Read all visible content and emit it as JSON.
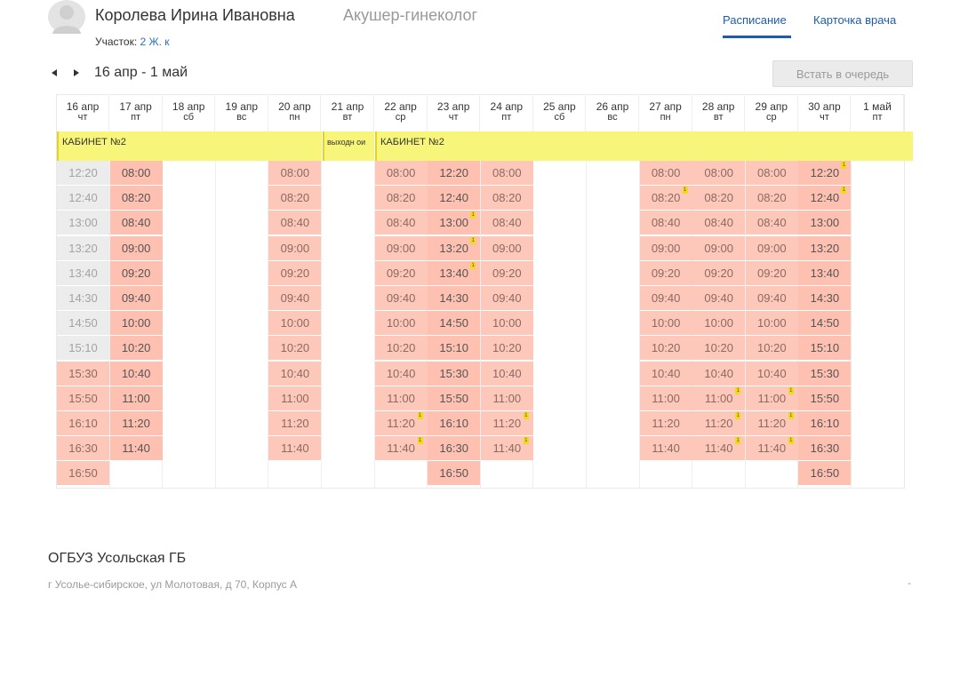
{
  "doctor": {
    "name": "Королева Ирина Ивановна",
    "specialty": "Акушер-гинеколог",
    "district_label": "Участок:",
    "district_value": "2 Ж. к"
  },
  "tabs": [
    {
      "label": "Расписание",
      "active": true
    },
    {
      "label": "Карточка врача",
      "active": false
    }
  ],
  "period": {
    "label": "16 апр - 1 май"
  },
  "queue_button": {
    "label": "Встать в очередь"
  },
  "days": [
    {
      "date": "16 апр",
      "dow": "чт"
    },
    {
      "date": "17 апр",
      "dow": "пт"
    },
    {
      "date": "18 апр",
      "dow": "сб"
    },
    {
      "date": "19 апр",
      "dow": "вс"
    },
    {
      "date": "20 апр",
      "dow": "пн"
    },
    {
      "date": "21 апр",
      "dow": "вт"
    },
    {
      "date": "22 апр",
      "dow": "ср"
    },
    {
      "date": "23 апр",
      "dow": "чт"
    },
    {
      "date": "24 апр",
      "dow": "пт"
    },
    {
      "date": "25 апр",
      "dow": "сб"
    },
    {
      "date": "26 апр",
      "dow": "вс"
    },
    {
      "date": "27 апр",
      "dow": "пн"
    },
    {
      "date": "28 апр",
      "dow": "вт"
    },
    {
      "date": "29 апр",
      "dow": "ср"
    },
    {
      "date": "30 апр",
      "dow": "чт"
    },
    {
      "date": "1 май",
      "dow": "пт"
    }
  ],
  "cabinet_bands": [
    {
      "label": "КАБИНЕТ №2"
    },
    {
      "label": "выходн ои"
    },
    {
      "label": "КАБИНЕТ №2"
    }
  ],
  "columns": [
    {
      "day": 0,
      "slots": [
        {
          "t": "12:20",
          "s": "past"
        },
        {
          "t": "12:40",
          "s": "past"
        },
        {
          "t": "13:00",
          "s": "past"
        },
        {
          "t": "13:20",
          "s": "past"
        },
        {
          "t": "13:40",
          "s": "past"
        },
        {
          "t": "14:30",
          "s": "past"
        },
        {
          "t": "14:50",
          "s": "past"
        },
        {
          "t": "15:10",
          "s": "past"
        },
        {
          "t": "15:30",
          "s": "busy"
        },
        {
          "t": "15:50",
          "s": "busy"
        },
        {
          "t": "16:10",
          "s": "busy"
        },
        {
          "t": "16:30",
          "s": "busy"
        },
        {
          "t": "16:50",
          "s": "busy"
        }
      ]
    },
    {
      "day": 1,
      "slots": [
        {
          "t": "08:00",
          "s": "free"
        },
        {
          "t": "08:20",
          "s": "free"
        },
        {
          "t": "08:40",
          "s": "free"
        },
        {
          "t": "09:00",
          "s": "free"
        },
        {
          "t": "09:20",
          "s": "free"
        },
        {
          "t": "09:40",
          "s": "free"
        },
        {
          "t": "10:00",
          "s": "free"
        },
        {
          "t": "10:20",
          "s": "free"
        },
        {
          "t": "10:40",
          "s": "free"
        },
        {
          "t": "11:00",
          "s": "free"
        },
        {
          "t": "11:20",
          "s": "free"
        },
        {
          "t": "11:40",
          "s": "free"
        }
      ]
    },
    {
      "day": 4,
      "slots": [
        {
          "t": "08:00",
          "s": "busy"
        },
        {
          "t": "08:20",
          "s": "busy"
        },
        {
          "t": "08:40",
          "s": "busy"
        },
        {
          "t": "09:00",
          "s": "busy"
        },
        {
          "t": "09:20",
          "s": "busy"
        },
        {
          "t": "09:40",
          "s": "busy"
        },
        {
          "t": "10:00",
          "s": "busy"
        },
        {
          "t": "10:20",
          "s": "busy"
        },
        {
          "t": "10:40",
          "s": "busy"
        },
        {
          "t": "11:00",
          "s": "busy"
        },
        {
          "t": "11:20",
          "s": "busy"
        },
        {
          "t": "11:40",
          "s": "busy"
        }
      ]
    },
    {
      "day": 6,
      "slots": [
        {
          "t": "08:00",
          "s": "busy"
        },
        {
          "t": "08:20",
          "s": "busy"
        },
        {
          "t": "08:40",
          "s": "busy"
        },
        {
          "t": "09:00",
          "s": "busy"
        },
        {
          "t": "09:20",
          "s": "busy"
        },
        {
          "t": "09:40",
          "s": "busy"
        },
        {
          "t": "10:00",
          "s": "busy"
        },
        {
          "t": "10:20",
          "s": "busy"
        },
        {
          "t": "10:40",
          "s": "busy"
        },
        {
          "t": "11:00",
          "s": "busy"
        },
        {
          "t": "11:20",
          "s": "busy",
          "m": true
        },
        {
          "t": "11:40",
          "s": "busy",
          "m": true
        }
      ]
    },
    {
      "day": 7,
      "slots": [
        {
          "t": "12:20",
          "s": "free"
        },
        {
          "t": "12:40",
          "s": "free"
        },
        {
          "t": "13:00",
          "s": "free",
          "m": true
        },
        {
          "t": "13:20",
          "s": "free",
          "m": true
        },
        {
          "t": "13:40",
          "s": "free",
          "m": true
        },
        {
          "t": "14:30",
          "s": "free"
        },
        {
          "t": "14:50",
          "s": "free"
        },
        {
          "t": "15:10",
          "s": "free"
        },
        {
          "t": "15:30",
          "s": "free"
        },
        {
          "t": "15:50",
          "s": "free"
        },
        {
          "t": "16:10",
          "s": "free"
        },
        {
          "t": "16:30",
          "s": "free"
        },
        {
          "t": "16:50",
          "s": "free"
        }
      ]
    },
    {
      "day": 8,
      "slots": [
        {
          "t": "08:00",
          "s": "busy"
        },
        {
          "t": "08:20",
          "s": "busy"
        },
        {
          "t": "08:40",
          "s": "busy"
        },
        {
          "t": "09:00",
          "s": "busy"
        },
        {
          "t": "09:20",
          "s": "busy"
        },
        {
          "t": "09:40",
          "s": "busy"
        },
        {
          "t": "10:00",
          "s": "busy"
        },
        {
          "t": "10:20",
          "s": "busy"
        },
        {
          "t": "10:40",
          "s": "busy"
        },
        {
          "t": "11:00",
          "s": "busy"
        },
        {
          "t": "11:20",
          "s": "busy",
          "m": true
        },
        {
          "t": "11:40",
          "s": "busy",
          "m": true
        }
      ]
    },
    {
      "day": 11,
      "slots": [
        {
          "t": "08:00",
          "s": "busy"
        },
        {
          "t": "08:20",
          "s": "busy",
          "m": true
        },
        {
          "t": "08:40",
          "s": "busy"
        },
        {
          "t": "09:00",
          "s": "busy"
        },
        {
          "t": "09:20",
          "s": "busy"
        },
        {
          "t": "09:40",
          "s": "busy"
        },
        {
          "t": "10:00",
          "s": "busy"
        },
        {
          "t": "10:20",
          "s": "busy"
        },
        {
          "t": "10:40",
          "s": "busy"
        },
        {
          "t": "11:00",
          "s": "busy"
        },
        {
          "t": "11:20",
          "s": "busy"
        },
        {
          "t": "11:40",
          "s": "busy"
        }
      ]
    },
    {
      "day": 12,
      "slots": [
        {
          "t": "08:00",
          "s": "busy"
        },
        {
          "t": "08:20",
          "s": "busy"
        },
        {
          "t": "08:40",
          "s": "busy"
        },
        {
          "t": "09:00",
          "s": "busy"
        },
        {
          "t": "09:20",
          "s": "busy"
        },
        {
          "t": "09:40",
          "s": "busy"
        },
        {
          "t": "10:00",
          "s": "busy"
        },
        {
          "t": "10:20",
          "s": "busy"
        },
        {
          "t": "10:40",
          "s": "busy"
        },
        {
          "t": "11:00",
          "s": "busy",
          "m": true
        },
        {
          "t": "11:20",
          "s": "busy",
          "m": true
        },
        {
          "t": "11:40",
          "s": "busy",
          "m": true
        }
      ]
    },
    {
      "day": 13,
      "slots": [
        {
          "t": "08:00",
          "s": "busy"
        },
        {
          "t": "08:20",
          "s": "busy"
        },
        {
          "t": "08:40",
          "s": "busy"
        },
        {
          "t": "09:00",
          "s": "busy"
        },
        {
          "t": "09:20",
          "s": "busy"
        },
        {
          "t": "09:40",
          "s": "busy"
        },
        {
          "t": "10:00",
          "s": "busy"
        },
        {
          "t": "10:20",
          "s": "busy"
        },
        {
          "t": "10:40",
          "s": "busy"
        },
        {
          "t": "11:00",
          "s": "busy",
          "m": true
        },
        {
          "t": "11:20",
          "s": "busy",
          "m": true
        },
        {
          "t": "11:40",
          "s": "busy",
          "m": true
        }
      ]
    },
    {
      "day": 14,
      "slots": [
        {
          "t": "12:20",
          "s": "free",
          "m": true
        },
        {
          "t": "12:40",
          "s": "free",
          "m": true
        },
        {
          "t": "13:00",
          "s": "free"
        },
        {
          "t": "13:20",
          "s": "free"
        },
        {
          "t": "13:40",
          "s": "free"
        },
        {
          "t": "14:30",
          "s": "free"
        },
        {
          "t": "14:50",
          "s": "free"
        },
        {
          "t": "15:10",
          "s": "free"
        },
        {
          "t": "15:30",
          "s": "free"
        },
        {
          "t": "15:50",
          "s": "free"
        },
        {
          "t": "16:10",
          "s": "free"
        },
        {
          "t": "16:30",
          "s": "free"
        },
        {
          "t": "16:50",
          "s": "free"
        }
      ]
    }
  ],
  "org": {
    "name": "ОГБУЗ Усольская ГБ",
    "address": "г Усолье-сибирское, ул Молотовая, д 70, Корпус А",
    "phone": "-"
  },
  "colors": {
    "accent": "#1d5ca8",
    "cabinet_band": "#f8f67a",
    "slot": "#fdc8ba",
    "past_slot": "#ececec",
    "marker": "#f2d91a"
  },
  "icons": {
    "avatar": "user-avatar-icon",
    "prev": "arrow-left-icon",
    "next": "arrow-right-icon"
  }
}
